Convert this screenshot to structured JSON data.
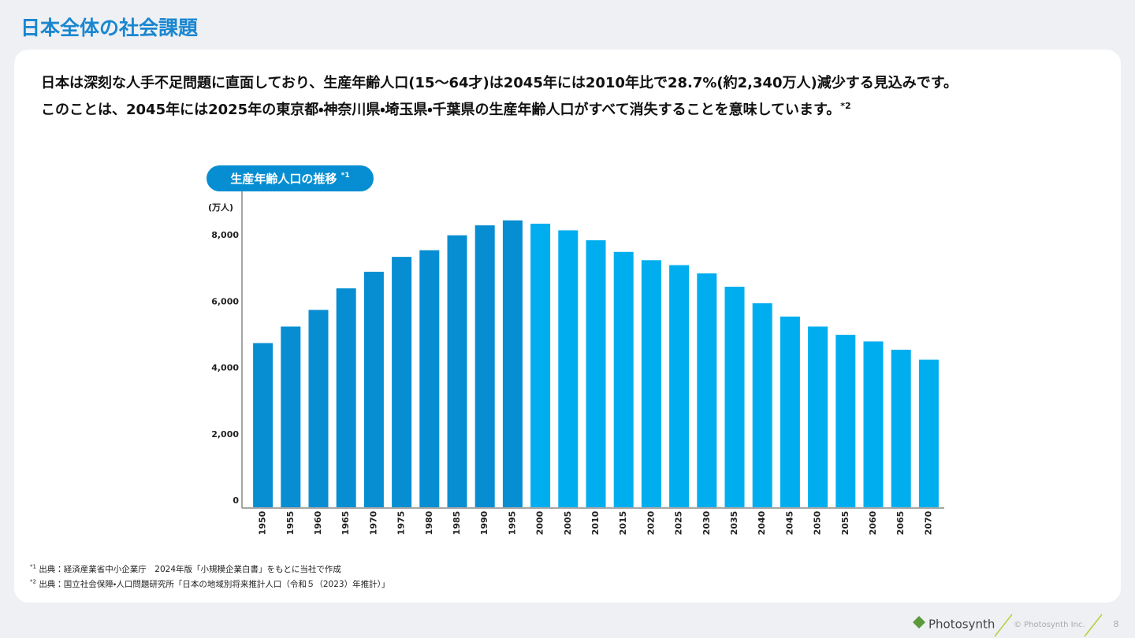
{
  "header": {
    "title": "日本全体の社会課題"
  },
  "description": {
    "line1": "日本は深刻な人手不足問題に直面しており、生産年齢人口(15〜64才)は2045年には2010年比で28.7%(約2,340万人)減少する見込みです。",
    "line2": "このことは、2045年には2025年の東京都・神奈川県・埼玉県・千葉県の生産年齢人口がすべて消失することを意味しています。",
    "line2_note": "*2"
  },
  "chart_data": {
    "type": "bar",
    "title": "生産年齢人口の推移",
    "title_note": "*1",
    "y_label": "(万人)",
    "categories": [
      "1950",
      "1955",
      "1960",
      "1965",
      "1970",
      "1975",
      "1980",
      "1985",
      "1990",
      "1995",
      "2000",
      "2005",
      "2010",
      "2015",
      "2020",
      "2025",
      "2030",
      "2035",
      "2040",
      "2045",
      "2050",
      "2055",
      "2060",
      "2065",
      "2070"
    ],
    "values": [
      4950,
      5450,
      5950,
      6600,
      7100,
      7550,
      7750,
      8200,
      8500,
      8650,
      8550,
      8350,
      8050,
      7700,
      7450,
      7300,
      7050,
      6650,
      6150,
      5750,
      5450,
      5200,
      5000,
      4750,
      4450
    ],
    "colors": [
      "#078ed2",
      "#078ed2",
      "#078ed2",
      "#078ed2",
      "#078ed2",
      "#078ed2",
      "#078ed2",
      "#078ed2",
      "#078ed2",
      "#078ed2",
      "#00aeef",
      "#00aeef",
      "#00aeef",
      "#00aeef",
      "#00aeef",
      "#00aeef",
      "#00aeef",
      "#00aeef",
      "#00aeef",
      "#00aeef",
      "#00aeef",
      "#00aeef",
      "#00aeef",
      "#00aeef",
      "#00aeef"
    ],
    "ylim": [
      0,
      9500
    ],
    "yticks": [
      0,
      {
        "value": 2000,
        "label": "2,000"
      },
      {
        "value": 4000,
        "label": "4,000"
      },
      {
        "value": 6000,
        "label": "6,000"
      },
      {
        "value": 8000,
        "label": "8,000"
      }
    ],
    "grid": false
  },
  "footnotes": [
    {
      "mark": "*1",
      "text": "出典：経済産業省中小企業庁　2024年版「小規模企業白書」をもとに当社で作成"
    },
    {
      "mark": "*2",
      "text": "出典：国立社会保障・人口問題研究所「日本の地域別将来推計人口（令和５（2023）年推計）」"
    }
  ],
  "footer": {
    "logo": "Photosynth",
    "copyright": "© Photosynth Inc.",
    "page": "8"
  }
}
